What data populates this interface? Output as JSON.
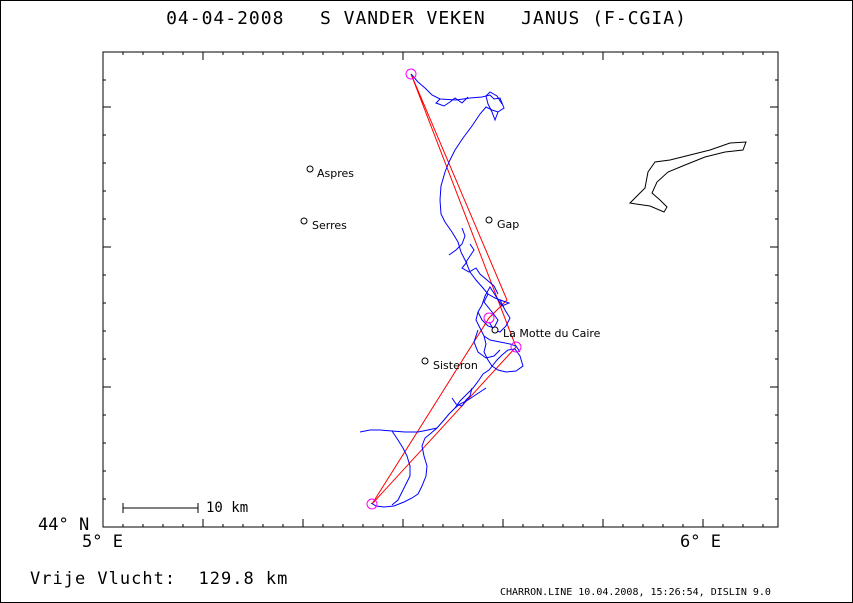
{
  "title": "04-04-2008   S VANDER VEKEN   JANUS (F-CGIA)",
  "axes": {
    "lat_label": "44° N",
    "lon_left_label": "5° E",
    "lon_right_label": "6° E"
  },
  "scale_bar": {
    "label": "10 km"
  },
  "places": [
    {
      "name": "Aspres"
    },
    {
      "name": "Serres"
    },
    {
      "name": "Gap"
    },
    {
      "name": "La Motte du Caire"
    },
    {
      "name": "Sisteron"
    }
  ],
  "summary": {
    "free_flight": "Vrije Vlucht:  129.8 km"
  },
  "footer": {
    "credit": "CHARRON.LINE 10.04.2008, 15:26:54, DISLIN 9.0"
  },
  "colors": {
    "track": "#0000ff",
    "task": "#ff0000",
    "turnpoint": "#ff00ff",
    "frame": "#000000"
  }
}
